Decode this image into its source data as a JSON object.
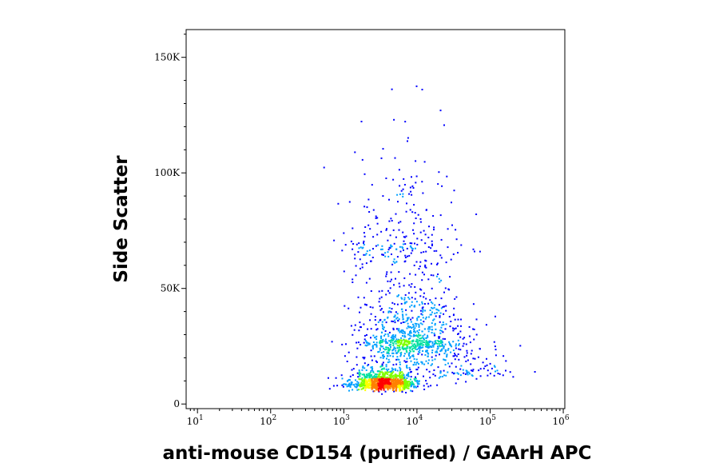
{
  "chart_data": {
    "type": "scatter",
    "title": "",
    "xlabel": "anti-mouse CD154 (purified) / GAArH APC",
    "ylabel": "Side Scatter",
    "x_scale": "log",
    "y_scale": "linear",
    "xlim": [
      7,
      1050000
    ],
    "ylim": [
      -2000,
      162000
    ],
    "x_ticks": [
      {
        "value": 10,
        "base": "10",
        "exp": "1"
      },
      {
        "value": 100,
        "base": "10",
        "exp": "2"
      },
      {
        "value": 1000,
        "base": "10",
        "exp": "3"
      },
      {
        "value": 10000,
        "base": "10",
        "exp": "4"
      },
      {
        "value": 100000,
        "base": "10",
        "exp": "5"
      },
      {
        "value": 1000000,
        "base": "10",
        "exp": "6"
      }
    ],
    "y_ticks": [
      {
        "value": 0,
        "label": "0"
      },
      {
        "value": 50000,
        "label": "50K"
      },
      {
        "value": 100000,
        "label": "100K"
      },
      {
        "value": 150000,
        "label": "150K"
      }
    ],
    "grid": false,
    "legend": "none",
    "color_scale": [
      "#0000ff",
      "#00a0ff",
      "#00e0a0",
      "#80ff00",
      "#ffff00",
      "#ff8000",
      "#ff0000"
    ],
    "populations": [
      {
        "center_x": 3500,
        "center_y": 9000,
        "spread_log_x": 0.22,
        "spread_y": 4500,
        "weight": 0.5
      },
      {
        "center_x": 8000,
        "center_y": 28000,
        "spread_log_x": 0.35,
        "spread_y": 18000,
        "weight": 0.35
      },
      {
        "center_x": 6000,
        "center_y": 70000,
        "spread_log_x": 0.4,
        "spread_y": 30000,
        "weight": 0.1
      },
      {
        "center_x": 40000,
        "center_y": 15000,
        "spread_log_x": 0.35,
        "spread_y": 9000,
        "weight": 0.05
      }
    ]
  }
}
